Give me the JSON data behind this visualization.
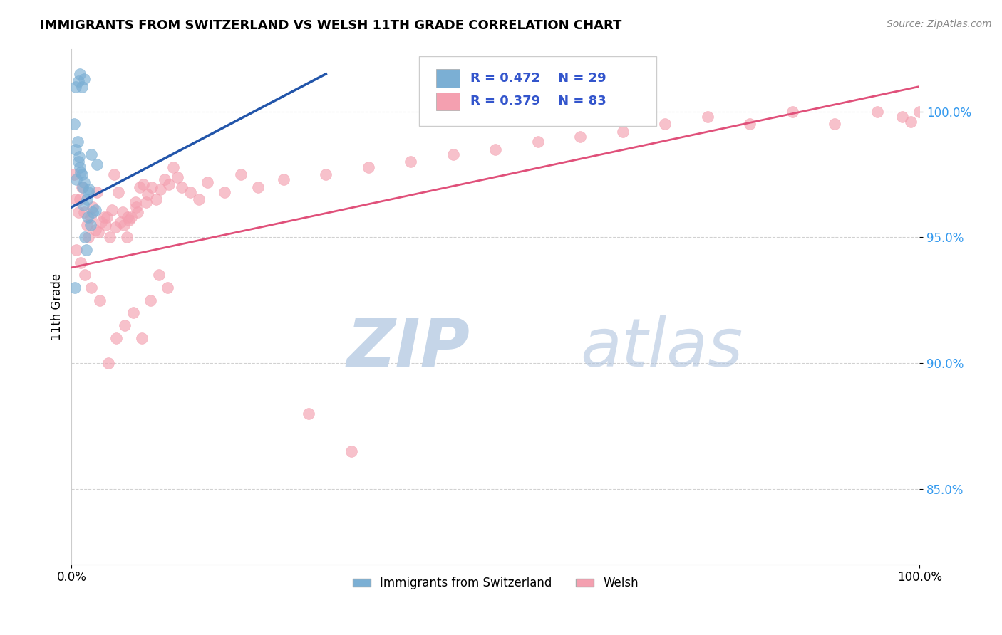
{
  "title": "IMMIGRANTS FROM SWITZERLAND VS WELSH 11TH GRADE CORRELATION CHART",
  "source_text": "Source: ZipAtlas.com",
  "ylabel": "11th Grade",
  "xlim": [
    0.0,
    100.0
  ],
  "ylim": [
    82.0,
    102.5
  ],
  "ytick_labels": [
    "85.0%",
    "90.0%",
    "95.0%",
    "100.0%"
  ],
  "ytick_values": [
    85.0,
    90.0,
    95.0,
    100.0
  ],
  "xtick_labels": [
    "0.0%",
    "100.0%"
  ],
  "xtick_values": [
    0.0,
    100.0
  ],
  "legend_r_blue": "R = 0.472",
  "legend_n_blue": "N = 29",
  "legend_r_pink": "R = 0.379",
  "legend_n_pink": "N = 83",
  "legend_label_blue": "Immigrants from Switzerland",
  "legend_label_pink": "Welsh",
  "blue_color": "#7bafd4",
  "pink_color": "#f4a0b0",
  "blue_line_color": "#2255aa",
  "pink_line_color": "#e0507a",
  "legend_text_color": "#3355cc",
  "ytick_color": "#3399ee",
  "blue_line_x0": 0.0,
  "blue_line_y0": 96.2,
  "blue_line_x1": 30.0,
  "blue_line_y1": 101.5,
  "pink_line_x0": 0.0,
  "pink_line_y0": 93.8,
  "pink_line_x1": 100.0,
  "pink_line_y1": 101.0,
  "blue_scatter_x": [
    0.3,
    0.5,
    0.5,
    0.7,
    0.8,
    0.8,
    1.0,
    1.0,
    1.1,
    1.2,
    1.2,
    1.3,
    1.4,
    1.5,
    1.5,
    1.6,
    1.7,
    1.8,
    1.9,
    2.0,
    2.1,
    2.2,
    2.3,
    2.5,
    2.8,
    3.0,
    0.4,
    0.6,
    0.9
  ],
  "blue_scatter_y": [
    99.5,
    98.5,
    101.0,
    98.8,
    98.0,
    101.2,
    97.8,
    101.5,
    97.6,
    97.5,
    101.0,
    97.0,
    96.3,
    97.2,
    101.3,
    95.0,
    94.5,
    96.5,
    95.8,
    96.8,
    96.9,
    95.5,
    98.3,
    96.0,
    96.1,
    97.9,
    93.0,
    97.3,
    98.2
  ],
  "pink_scatter_x": [
    0.3,
    0.5,
    0.8,
    1.0,
    1.2,
    1.5,
    1.8,
    2.0,
    2.2,
    2.5,
    2.8,
    3.0,
    3.2,
    3.5,
    3.8,
    4.0,
    4.2,
    4.5,
    4.8,
    5.0,
    5.2,
    5.5,
    5.8,
    6.0,
    6.2,
    6.5,
    6.6,
    6.8,
    7.0,
    7.5,
    7.6,
    7.8,
    8.0,
    8.5,
    8.8,
    9.0,
    9.5,
    10.0,
    10.5,
    11.0,
    11.5,
    12.0,
    12.5,
    13.0,
    14.0,
    15.0,
    16.0,
    18.0,
    20.0,
    22.0,
    0.6,
    1.1,
    1.6,
    2.3,
    3.3,
    4.3,
    5.3,
    6.3,
    7.3,
    8.3,
    9.3,
    10.3,
    11.3,
    25.0,
    30.0,
    35.0,
    40.0,
    45.0,
    50.0,
    55.0,
    60.0,
    65.0,
    70.0,
    75.0,
    80.0,
    85.0,
    90.0,
    95.0,
    98.0,
    99.0,
    100.0,
    28.0,
    33.0
  ],
  "pink_scatter_y": [
    97.5,
    96.5,
    96.0,
    96.5,
    97.0,
    96.0,
    95.5,
    95.0,
    95.8,
    96.2,
    95.3,
    96.8,
    95.2,
    95.6,
    95.8,
    95.5,
    95.8,
    95.0,
    96.1,
    97.5,
    95.4,
    96.8,
    95.6,
    96.0,
    95.5,
    95.0,
    95.8,
    95.7,
    95.8,
    96.4,
    96.2,
    96.0,
    97.0,
    97.1,
    96.4,
    96.7,
    97.0,
    96.5,
    96.9,
    97.3,
    97.1,
    97.8,
    97.4,
    97.0,
    96.8,
    96.5,
    97.2,
    96.8,
    97.5,
    97.0,
    94.5,
    94.0,
    93.5,
    93.0,
    92.5,
    90.0,
    91.0,
    91.5,
    92.0,
    91.0,
    92.5,
    93.5,
    93.0,
    97.3,
    97.5,
    97.8,
    98.0,
    98.3,
    98.5,
    98.8,
    99.0,
    99.2,
    99.5,
    99.8,
    99.5,
    100.0,
    99.5,
    100.0,
    99.8,
    99.6,
    100.0,
    88.0,
    86.5
  ]
}
